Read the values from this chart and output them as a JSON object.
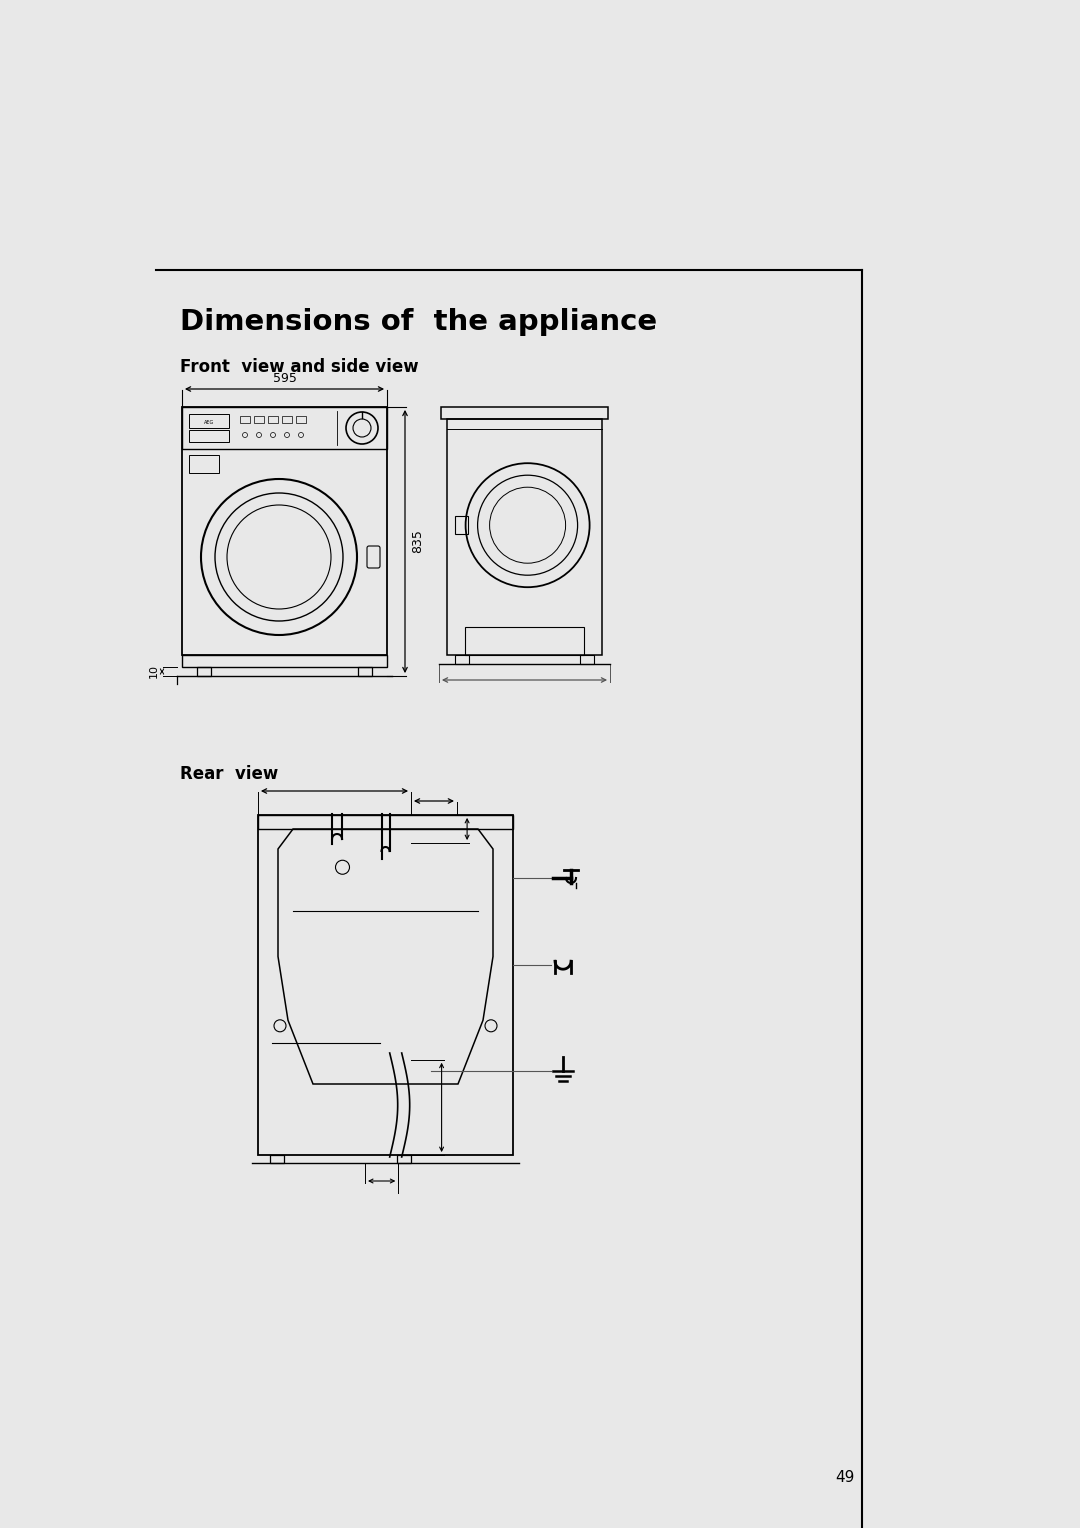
{
  "title": "Dimensions of  the appliance",
  "subtitle1": "Front  view and side view",
  "subtitle2": "Rear  view",
  "dim_width": "595",
  "dim_height": "835",
  "dim_feet": "10",
  "page_number": "49",
  "bg_color": "#ffffff",
  "line_color": "#000000",
  "dim_line_color": "#555555",
  "border_color": "#000000",
  "page_bg": "#e8e8e8"
}
